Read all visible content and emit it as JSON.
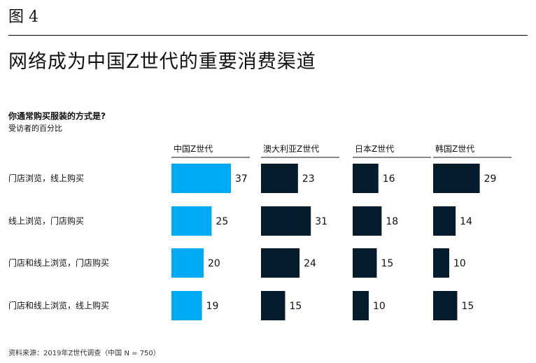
{
  "figure_label": "图 4",
  "title": "网络成为中国Z世代的重要消费渠道",
  "question": "你通常购买服装的方式是?",
  "unit_note": "受访者的百分比",
  "source": "资料来源：2019年Z世代调查（中国 N = 750）",
  "colors": {
    "highlight": "#00a9f4",
    "dark": "#051c2c"
  },
  "chart_data": {
    "type": "bar",
    "orientation": "horizontal",
    "categories": [
      "门店浏览，线上购买",
      "线上浏览，门店购买",
      "门店和线上浏览，门店购买",
      "门店和线上浏览，线上购买"
    ],
    "series": [
      {
        "name": "中国Z世代",
        "values": [
          37,
          25,
          20,
          19
        ]
      },
      {
        "name": "澳大利亚Z世代",
        "values": [
          23,
          31,
          24,
          15
        ]
      },
      {
        "name": "日本Z世代",
        "values": [
          16,
          18,
          15,
          10
        ]
      },
      {
        "name": "韩国Z世代",
        "values": [
          29,
          14,
          10,
          15
        ]
      }
    ]
  }
}
